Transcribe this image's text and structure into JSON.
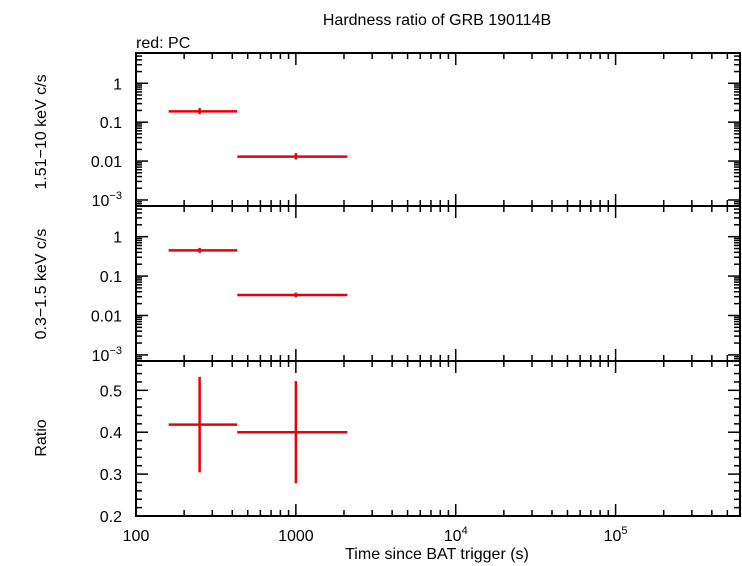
{
  "title": "Hardness ratio of GRB 190114B",
  "legend_label": "red: PC",
  "xlabel": "Time since BAT trigger (s)",
  "colors": {
    "series": "#e8000b",
    "axes": "#000000"
  },
  "chart_data": {
    "type": "scatter",
    "x_scale": "log",
    "xlim": [
      100,
      600000
    ],
    "x_ticks": [
      {
        "value": 100,
        "base": "100",
        "exp": ""
      },
      {
        "value": 1000,
        "base": "1000",
        "exp": ""
      },
      {
        "value": 10000,
        "base": "10",
        "exp": "4"
      },
      {
        "value": 100000,
        "base": "10",
        "exp": "5"
      }
    ],
    "panels": [
      {
        "ylabel": "1.51−10 keV c/s",
        "y_scale": "log",
        "ylim": [
          0.0007,
          6
        ],
        "y_ticks": [
          {
            "value": 1,
            "base": "1",
            "exp": ""
          },
          {
            "value": 0.1,
            "base": "0.1",
            "exp": ""
          },
          {
            "value": 0.01,
            "base": "0.01",
            "exp": ""
          },
          {
            "value": 0.001,
            "base": "10",
            "exp": "−3"
          }
        ],
        "points": [
          {
            "x": 250,
            "xlo": 160,
            "xhi": 430,
            "y": 0.19,
            "ylo": 0.16,
            "yhi": 0.23
          },
          {
            "x": 1000,
            "xlo": 430,
            "xhi": 2100,
            "y": 0.013,
            "ylo": 0.011,
            "yhi": 0.016
          }
        ]
      },
      {
        "ylabel": "0.3−1.5 keV c/s",
        "y_scale": "log",
        "ylim": [
          0.0007,
          6
        ],
        "y_ticks": [
          {
            "value": 1,
            "base": "1",
            "exp": ""
          },
          {
            "value": 0.1,
            "base": "0.1",
            "exp": ""
          },
          {
            "value": 0.01,
            "base": "0.01",
            "exp": ""
          },
          {
            "value": 0.001,
            "base": "10",
            "exp": "−3"
          }
        ],
        "points": [
          {
            "x": 250,
            "xlo": 160,
            "xhi": 430,
            "y": 0.45,
            "ylo": 0.39,
            "yhi": 0.52
          },
          {
            "x": 1000,
            "xlo": 430,
            "xhi": 2100,
            "y": 0.033,
            "ylo": 0.029,
            "yhi": 0.038
          }
        ]
      },
      {
        "ylabel": "Ratio",
        "y_scale": "linear",
        "ylim": [
          0.2,
          0.57
        ],
        "y_ticks": [
          {
            "value": 0.2,
            "base": "0.2",
            "exp": ""
          },
          {
            "value": 0.3,
            "base": "0.3",
            "exp": ""
          },
          {
            "value": 0.4,
            "base": "0.4",
            "exp": ""
          },
          {
            "value": 0.5,
            "base": "0.5",
            "exp": ""
          }
        ],
        "y_minor_step": 0.02,
        "points": [
          {
            "x": 250,
            "xlo": 160,
            "xhi": 430,
            "y": 0.418,
            "ylo": 0.304,
            "yhi": 0.532
          },
          {
            "x": 1000,
            "xlo": 430,
            "xhi": 2100,
            "y": 0.4,
            "ylo": 0.278,
            "yhi": 0.522
          }
        ]
      }
    ]
  }
}
